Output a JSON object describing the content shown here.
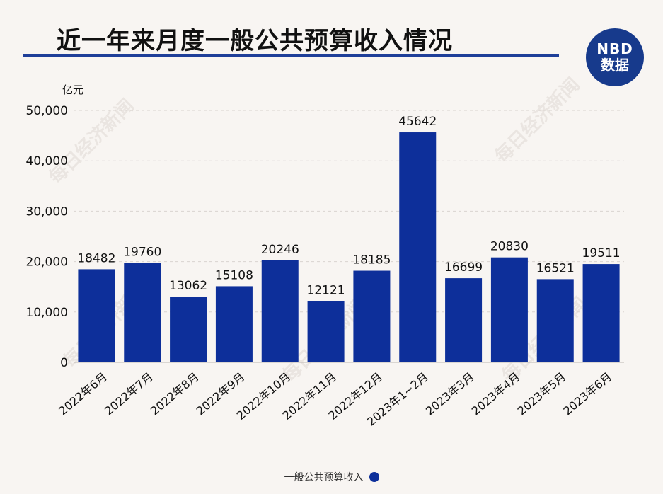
{
  "header": {
    "title": "近一年来月度一般公共预算收入情况",
    "logo_line1": "NBD",
    "logo_line2": "数据"
  },
  "watermark_text": "每日经济新闻",
  "colors": {
    "bar": "#0d2f9a",
    "title_rule": "#1f3f99",
    "grid": "#d9d4cf",
    "background": "#f8f5f2"
  },
  "chart_data": {
    "type": "bar",
    "title": "近一年来月度一般公共预算收入情况",
    "ylabel": "亿元",
    "xlabel": "",
    "ylim": [
      0,
      50000
    ],
    "yticks": [
      0,
      10000,
      20000,
      30000,
      40000,
      50000
    ],
    "ytick_labels": [
      "0",
      "10,000",
      "20,000",
      "30,000",
      "40,000",
      "50,000"
    ],
    "grid": true,
    "legend_position": "bottom",
    "categories": [
      "2022年6月",
      "2022年7月",
      "2022年8月",
      "2022年9月",
      "2022年10月",
      "2022年11月",
      "2022年12月",
      "2023年1~2月",
      "2023年3月",
      "2023年4月",
      "2023年5月",
      "2023年6月"
    ],
    "series": [
      {
        "name": "一般公共预算收入",
        "values": [
          18482,
          19760,
          13062,
          15108,
          20246,
          12121,
          18185,
          45642,
          16699,
          20830,
          16521,
          19511
        ]
      }
    ]
  }
}
